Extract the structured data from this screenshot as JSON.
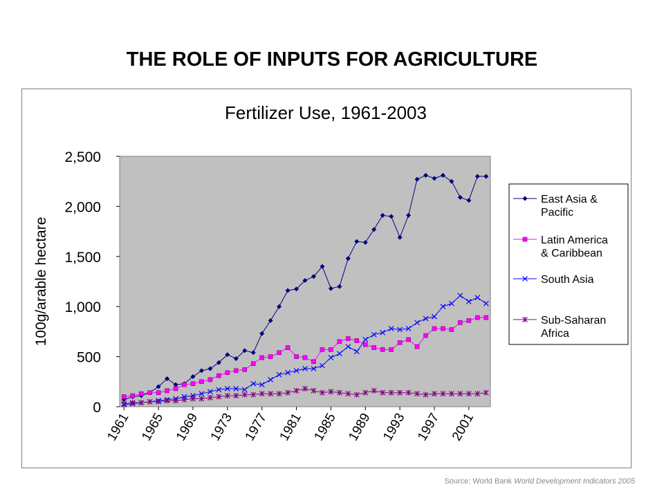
{
  "slide": {
    "title": "THE ROLE OF INPUTS FOR AGRICULTURE",
    "source_prefix": "Source: World Bank",
    "source_italic": "World Development Indicators 2005"
  },
  "chart_data": {
    "type": "line",
    "title": "Fertilizer Use, 1961-2003",
    "xlabel": "",
    "ylabel": "100g/arable hectare",
    "ylim": [
      0,
      2500
    ],
    "yticks": [
      0,
      500,
      1000,
      1500,
      2000,
      2500
    ],
    "ytick_labels": [
      "0",
      "500",
      "1,000",
      "1,500",
      "2,000",
      "2,500"
    ],
    "xtick_labels": [
      "1961",
      "1965",
      "1969",
      "1973",
      "1977",
      "1981",
      "1985",
      "1989",
      "1993",
      "1997",
      "2001"
    ],
    "grid": false,
    "legend_position": "right",
    "x": [
      1961,
      1962,
      1963,
      1964,
      1965,
      1966,
      1967,
      1968,
      1969,
      1970,
      1971,
      1972,
      1973,
      1974,
      1975,
      1976,
      1977,
      1978,
      1979,
      1980,
      1981,
      1982,
      1983,
      1984,
      1985,
      1986,
      1987,
      1988,
      1989,
      1990,
      1991,
      1992,
      1993,
      1994,
      1995,
      1996,
      1997,
      1998,
      1999,
      2000,
      2001,
      2002,
      2003
    ],
    "series": [
      {
        "name": "East Asia & Pacific",
        "legend_lines": [
          "East Asia &",
          "Pacific"
        ],
        "color": "#000080",
        "marker": "diamond",
        "values": [
          70,
          100,
          110,
          140,
          200,
          280,
          220,
          230,
          300,
          360,
          380,
          440,
          520,
          480,
          560,
          540,
          730,
          860,
          1000,
          1160,
          1175,
          1260,
          1300,
          1400,
          1180,
          1200,
          1480,
          1650,
          1640,
          1770,
          1910,
          1900,
          1690,
          1910,
          2270,
          2310,
          2280,
          2310,
          2250,
          2090,
          2060,
          2300,
          2300
        ]
      },
      {
        "name": "Latin America & Caribbean",
        "legend_lines": [
          "Latin America",
          "& Caribbean"
        ],
        "color": "#ff00ff",
        "marker": "square",
        "values": [
          100,
          110,
          130,
          140,
          140,
          160,
          180,
          220,
          230,
          250,
          270,
          310,
          340,
          360,
          370,
          430,
          490,
          500,
          540,
          590,
          500,
          490,
          450,
          570,
          570,
          650,
          680,
          660,
          620,
          590,
          570,
          570,
          640,
          670,
          600,
          710,
          780,
          780,
          770,
          840,
          860,
          890,
          890
        ]
      },
      {
        "name": "South Asia",
        "legend_lines": [
          "South Asia"
        ],
        "color": "#0000ff",
        "marker": "x",
        "values": [
          20,
          30,
          40,
          50,
          60,
          70,
          80,
          100,
          110,
          130,
          150,
          170,
          180,
          180,
          170,
          230,
          220,
          270,
          320,
          340,
          360,
          380,
          380,
          410,
          490,
          530,
          600,
          550,
          670,
          720,
          740,
          780,
          770,
          780,
          840,
          880,
          900,
          1000,
          1030,
          1110,
          1050,
          1090,
          1030
        ]
      },
      {
        "name": "Sub-Saharan Africa",
        "legend_lines": [
          "Sub-Saharan",
          "Africa"
        ],
        "color": "#800080",
        "marker": "star",
        "values": [
          30,
          40,
          40,
          50,
          50,
          60,
          60,
          70,
          80,
          80,
          90,
          100,
          110,
          110,
          120,
          120,
          130,
          130,
          130,
          140,
          160,
          180,
          160,
          140,
          150,
          140,
          130,
          120,
          140,
          160,
          140,
          140,
          140,
          140,
          130,
          120,
          130,
          130,
          130,
          130,
          130,
          130,
          140
        ]
      }
    ]
  }
}
